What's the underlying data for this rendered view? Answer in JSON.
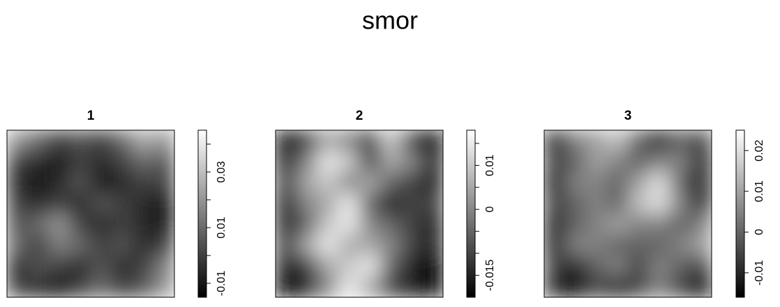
{
  "title": "smor",
  "chart_data": [
    {
      "type": "heatmap",
      "title": "1",
      "zlim": [
        -0.015,
        0.045
      ],
      "zticks": [
        -0.01,
        0.01,
        0.03
      ],
      "minor_zticks": [
        0,
        0.02,
        0.04
      ],
      "z": [
        [
          0.02,
          0.01,
          0.0,
          0.005,
          0.0,
          0.01,
          0.025,
          0.02
        ],
        [
          0.0,
          -0.005,
          -0.01,
          0.0,
          -0.005,
          0.0,
          0.01,
          0.005
        ],
        [
          -0.005,
          -0.01,
          -0.005,
          0.005,
          -0.01,
          -0.005,
          0.0,
          0.0
        ],
        [
          0.0,
          -0.005,
          0.0,
          -0.005,
          0.005,
          0.0,
          -0.005,
          -0.01
        ],
        [
          0.005,
          0.01,
          0.02,
          0.0,
          -0.005,
          0.0,
          -0.005,
          -0.01
        ],
        [
          0.01,
          0.0,
          0.015,
          0.01,
          0.0,
          0.005,
          -0.005,
          0.0
        ],
        [
          -0.005,
          0.005,
          0.0,
          -0.005,
          0.005,
          -0.005,
          0.0,
          0.015
        ],
        [
          0.0,
          -0.005,
          -0.01,
          0.0,
          0.01,
          0.0,
          0.005,
          0.02
        ]
      ]
    },
    {
      "type": "heatmap",
      "title": "2",
      "zlim": [
        -0.02,
        0.018
      ],
      "zticks": [
        -0.015,
        0,
        0.01
      ],
      "minor_zticks": [
        -0.01,
        -0.005,
        0.005,
        0.015
      ],
      "z": [
        [
          -0.02,
          -0.01,
          0.005,
          0.0,
          -0.01,
          0.01,
          -0.01,
          -0.02
        ],
        [
          -0.015,
          0.0,
          0.015,
          0.01,
          -0.01,
          0.005,
          0.0,
          -0.015
        ],
        [
          -0.01,
          0.005,
          0.01,
          0.0,
          0.005,
          -0.005,
          -0.01,
          -0.015
        ],
        [
          -0.015,
          0.0,
          0.005,
          0.015,
          -0.005,
          -0.015,
          -0.01,
          -0.01
        ],
        [
          -0.015,
          -0.005,
          0.01,
          0.015,
          0.0,
          -0.005,
          -0.01,
          -0.015
        ],
        [
          -0.01,
          0.005,
          0.015,
          0.005,
          0.005,
          0.0,
          -0.01,
          -0.015
        ],
        [
          -0.015,
          -0.01,
          0.005,
          0.01,
          0.015,
          -0.005,
          -0.015,
          -0.02
        ],
        [
          -0.02,
          -0.015,
          0.0,
          0.015,
          0.005,
          -0.01,
          -0.015,
          -0.02
        ]
      ]
    },
    {
      "type": "heatmap",
      "title": "3",
      "zlim": [
        -0.016,
        0.025
      ],
      "zticks": [
        -0.01,
        0,
        0.01,
        0.02
      ],
      "minor_zticks": [],
      "z": [
        [
          -0.01,
          0.005,
          0.01,
          0.015,
          0.0,
          -0.01,
          0.0,
          -0.005
        ],
        [
          -0.005,
          0.0,
          0.01,
          0.005,
          0.0,
          0.005,
          0.005,
          -0.01
        ],
        [
          -0.01,
          0.005,
          0.005,
          0.0,
          0.01,
          0.02,
          0.0,
          -0.01
        ],
        [
          -0.005,
          0.0,
          0.005,
          0.0,
          0.015,
          0.02,
          0.005,
          -0.01
        ],
        [
          -0.01,
          0.0,
          0.005,
          0.01,
          0.005,
          0.005,
          0.0,
          0.005
        ],
        [
          -0.01,
          0.005,
          0.005,
          0.0,
          0.0,
          0.0,
          0.005,
          0.01
        ],
        [
          -0.005,
          -0.01,
          0.0,
          0.005,
          -0.005,
          0.005,
          0.0,
          -0.005
        ],
        [
          -0.01,
          -0.015,
          -0.005,
          -0.01,
          -0.005,
          0.005,
          -0.005,
          -0.015
        ]
      ]
    }
  ]
}
